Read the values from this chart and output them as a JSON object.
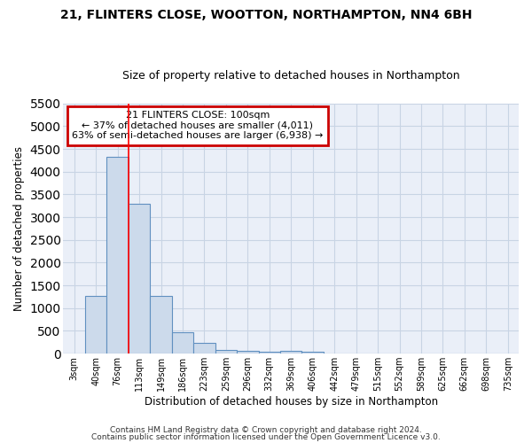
{
  "title1": "21, FLINTERS CLOSE, WOOTTON, NORTHAMPTON, NN4 6BH",
  "title2": "Size of property relative to detached houses in Northampton",
  "xlabel": "Distribution of detached houses by size in Northampton",
  "ylabel": "Number of detached properties",
  "categories": [
    "3sqm",
    "40sqm",
    "76sqm",
    "113sqm",
    "149sqm",
    "186sqm",
    "223sqm",
    "259sqm",
    "296sqm",
    "332sqm",
    "369sqm",
    "406sqm",
    "442sqm",
    "479sqm",
    "515sqm",
    "552sqm",
    "589sqm",
    "625sqm",
    "662sqm",
    "698sqm",
    "735sqm"
  ],
  "values": [
    0,
    1270,
    4330,
    3300,
    1270,
    480,
    230,
    90,
    60,
    50,
    55,
    50,
    0,
    0,
    0,
    0,
    0,
    0,
    0,
    0,
    0
  ],
  "bar_color": "#ccdaeb",
  "bar_edge_color": "#6090c0",
  "bar_edge_width": 0.8,
  "grid_color": "#c8d4e4",
  "bg_color": "#eaeff8",
  "red_line_index": 2.5,
  "annotation_title": "21 FLINTERS CLOSE: 100sqm",
  "annotation_line1": "← 37% of detached houses are smaller (4,011)",
  "annotation_line2": "63% of semi-detached houses are larger (6,938) →",
  "annotation_box_color": "#cc0000",
  "ylim": [
    0,
    5500
  ],
  "yticks": [
    0,
    500,
    1000,
    1500,
    2000,
    2500,
    3000,
    3500,
    4000,
    4500,
    5000,
    5500
  ],
  "footer1": "Contains HM Land Registry data © Crown copyright and database right 2024.",
  "footer2": "Contains public sector information licensed under the Open Government Licence v3.0.",
  "title1_fontsize": 10,
  "title2_fontsize": 9
}
